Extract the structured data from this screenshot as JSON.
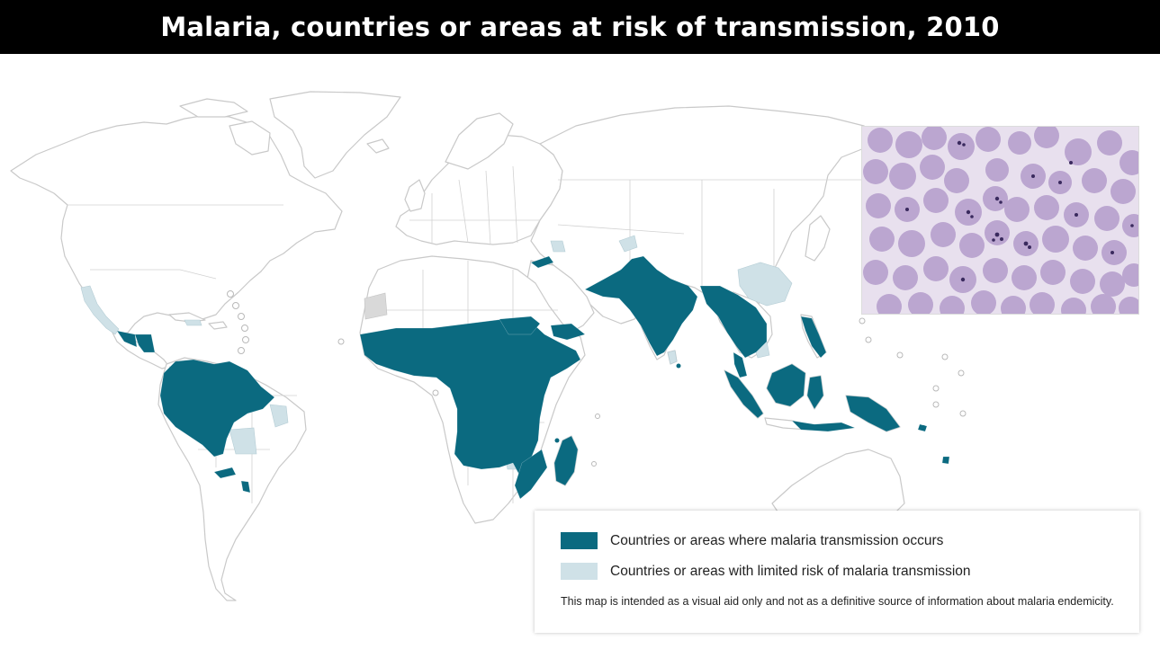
{
  "header": {
    "title": "Malaria, countries or areas at risk of transmission, 2010"
  },
  "legend": {
    "items": [
      {
        "label": "Countries or areas where malaria transmission occurs",
        "color": "#0b6a80"
      },
      {
        "label": "Countries or areas with limited risk of malaria transmission",
        "color": "#cfe1e7"
      }
    ],
    "note": "This map is intended as a visual aid only and not as a definitive source of information about malaria endemicity."
  },
  "colors": {
    "risk": "#0b6a80",
    "limited": "#cfe1e7",
    "land": "#ffffff",
    "border": "#c9c9c9",
    "cell": "#b9a3cf",
    "cell_background": "#e8e0ee",
    "parasite": "#3a2a5e"
  },
  "inset": {
    "icon": "blood-smear-photo"
  }
}
